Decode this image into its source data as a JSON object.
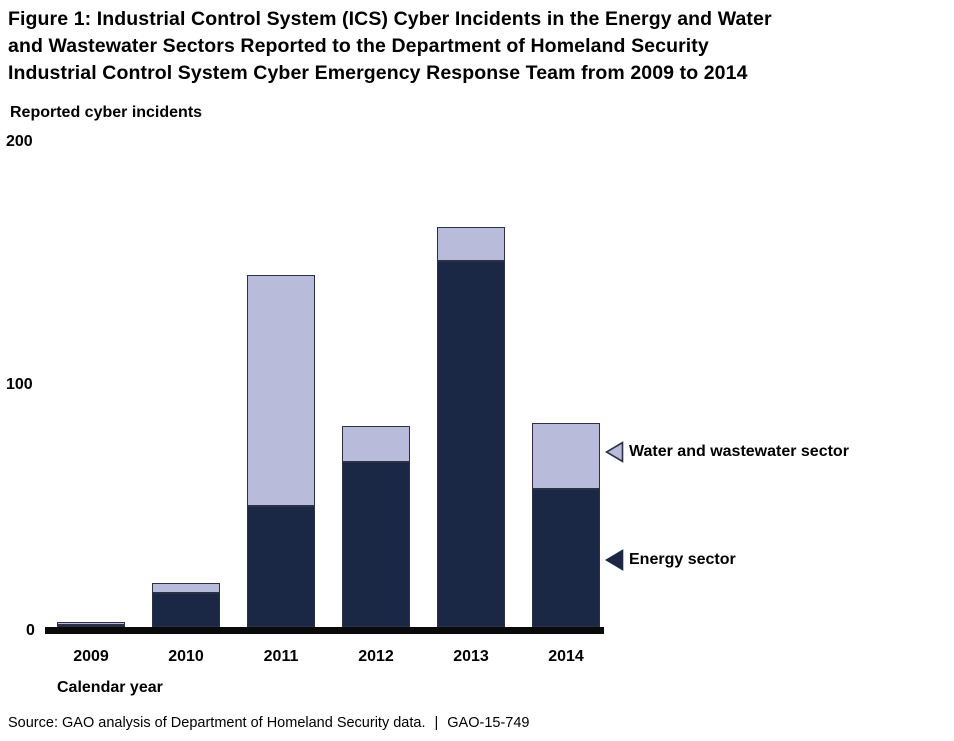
{
  "figure": {
    "title_lines": [
      "Figure 1: Industrial Control System (ICS) Cyber Incidents in the Energy and Water",
      "and Wastewater Sectors Reported to the Department of Homeland Security",
      "Industrial Control System Cyber Emergency Response Team from 2009 to 2014"
    ],
    "y_axis_title": "Reported cyber incidents",
    "x_axis_title": "Calendar year",
    "source_text": "Source: GAO analysis of Department of Homeland Security data.",
    "separator": "|",
    "report_id": "GAO-15-749"
  },
  "chart_data": {
    "type": "bar",
    "stacked": true,
    "title": "Figure 1: Industrial Control System (ICS) Cyber Incidents in the Energy and Water and Wastewater Sectors Reported to the Department of Homeland Security Industrial Control System Cyber Emergency Response Team from 2009 to 2014",
    "categories": [
      "2009",
      "2010",
      "2011",
      "2012",
      "2013",
      "2014"
    ],
    "series": [
      {
        "name": "Energy sector",
        "color": "#1a2845",
        "values": [
          1,
          14,
          50,
          68,
          151,
          57
        ]
      },
      {
        "name": "Water and wastewater sector",
        "color": "#b8bcda",
        "values": [
          1,
          4,
          95,
          15,
          14,
          27
        ]
      }
    ],
    "totals": [
      2,
      18,
      145,
      83,
      165,
      84
    ],
    "ylabel": "Reported cyber incidents",
    "xlabel": "Calendar year",
    "yticks": [
      0,
      100,
      200
    ],
    "ylim": [
      0,
      200
    ],
    "grid": false,
    "legend_position": "right-annotations",
    "annotations": [
      {
        "label": "Water and wastewater sector",
        "series_index": 1
      },
      {
        "label": "Energy sector",
        "series_index": 0
      }
    ]
  },
  "colors": {
    "energy": "#1a2845",
    "water": "#b8bcda",
    "bar_border": "#2a3147",
    "axis": "#0a0a0a",
    "text": "#000000",
    "background": "#ffffff"
  }
}
